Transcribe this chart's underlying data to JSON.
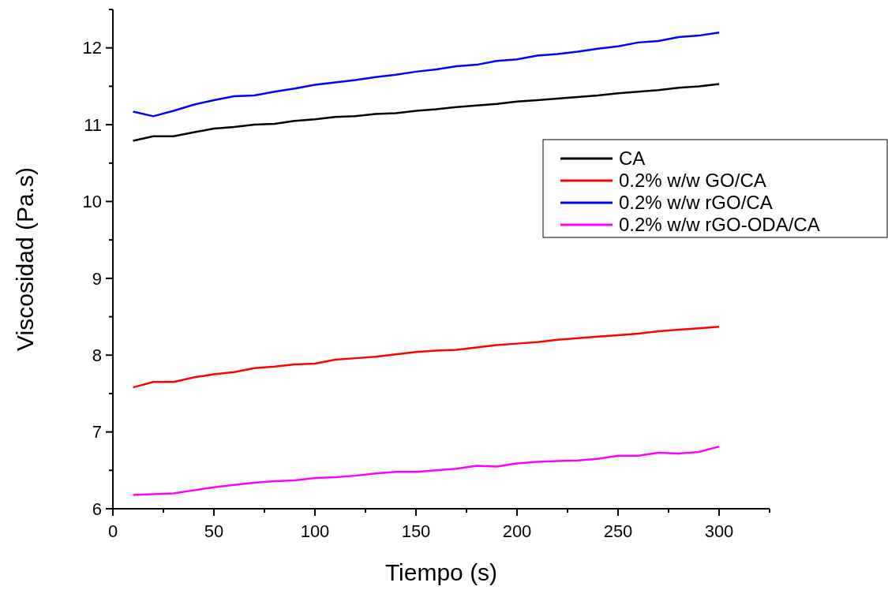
{
  "chart_data": {
    "type": "line",
    "xlabel": "Tiempo (s)",
    "ylabel": "Viscosidad (Pa.s)",
    "x": [
      10,
      20,
      30,
      40,
      50,
      60,
      70,
      80,
      90,
      100,
      110,
      120,
      130,
      140,
      150,
      160,
      170,
      180,
      190,
      200,
      210,
      220,
      230,
      240,
      250,
      260,
      270,
      280,
      290,
      300
    ],
    "series": [
      {
        "name": "CA",
        "color": "#000000",
        "values": [
          10.79,
          10.85,
          10.85,
          10.9,
          10.95,
          10.97,
          11.0,
          11.01,
          11.05,
          11.07,
          11.1,
          11.11,
          11.14,
          11.15,
          11.18,
          11.2,
          11.23,
          11.25,
          11.27,
          11.3,
          11.32,
          11.34,
          11.36,
          11.38,
          11.41,
          11.43,
          11.45,
          11.48,
          11.5,
          11.53
        ]
      },
      {
        "name": "0.2% w/w GO/CA",
        "color": "#ff0000",
        "values": [
          7.58,
          7.65,
          7.65,
          7.71,
          7.75,
          7.78,
          7.83,
          7.85,
          7.88,
          7.89,
          7.94,
          7.96,
          7.98,
          8.01,
          8.04,
          8.06,
          8.07,
          8.1,
          8.13,
          8.15,
          8.17,
          8.2,
          8.22,
          8.24,
          8.26,
          8.28,
          8.31,
          8.33,
          8.35,
          8.37
        ]
      },
      {
        "name": "0.2% w/w rGO/CA",
        "color": "#0000ff",
        "values": [
          11.17,
          11.11,
          11.18,
          11.26,
          11.32,
          11.37,
          11.38,
          11.43,
          11.47,
          11.52,
          11.55,
          11.58,
          11.62,
          11.65,
          11.69,
          11.72,
          11.76,
          11.78,
          11.83,
          11.85,
          11.9,
          11.92,
          11.95,
          11.99,
          12.02,
          12.07,
          12.09,
          12.14,
          12.16,
          12.2
        ]
      },
      {
        "name": "0.2% w/w rGO-ODA/CA",
        "color": "#ff00ff",
        "values": [
          6.18,
          6.19,
          6.2,
          6.24,
          6.28,
          6.31,
          6.34,
          6.36,
          6.37,
          6.4,
          6.41,
          6.43,
          6.46,
          6.48,
          6.48,
          6.5,
          6.52,
          6.56,
          6.55,
          6.59,
          6.61,
          6.62,
          6.63,
          6.65,
          6.69,
          6.69,
          6.73,
          6.72,
          6.74,
          6.81
        ]
      }
    ],
    "xlim": [
      0,
      325
    ],
    "ylim": [
      6,
      12.5
    ],
    "xticks": [
      0,
      {
        "value": 25,
        "label": null
      },
      50,
      {
        "value": 75,
        "label": null
      },
      100,
      {
        "value": 125,
        "label": null
      },
      150,
      {
        "value": 175,
        "label": null
      },
      200,
      {
        "value": 225,
        "label": null
      },
      250,
      {
        "value": 275,
        "label": null
      },
      300,
      {
        "value": 325,
        "label": null
      }
    ],
    "yticks": [
      6,
      {
        "value": 6.5,
        "label": null
      },
      7,
      {
        "value": 7.5,
        "label": null
      },
      8,
      {
        "value": 8.5,
        "label": null
      },
      9,
      {
        "value": 9.5,
        "label": null
      },
      10,
      {
        "value": 10.5,
        "label": null
      },
      11,
      {
        "value": 11.5,
        "label": null
      },
      12,
      {
        "value": 12.5,
        "label": null
      }
    ],
    "grid": false,
    "legend": "right",
    "line_style": "solid",
    "marker": "none"
  }
}
